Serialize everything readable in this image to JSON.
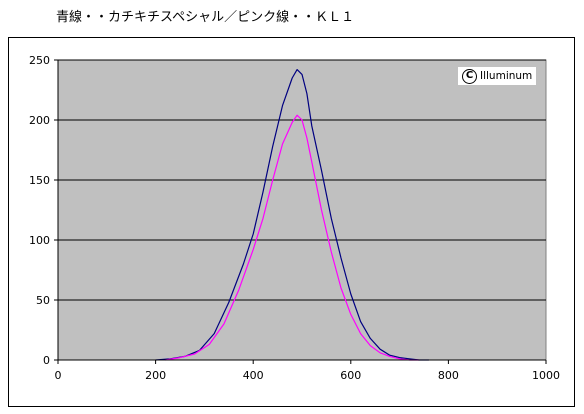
{
  "chart_data": {
    "type": "line",
    "title": "青線・・カチキチスペシャル／ピンク線・・ＫＬ１",
    "xlim": [
      0,
      1000
    ],
    "ylim": [
      0,
      250
    ],
    "x_ticks": [
      0,
      200,
      400,
      600,
      800,
      1000
    ],
    "y_ticks": [
      0,
      50,
      100,
      150,
      200,
      250
    ],
    "grid": "horizontal",
    "plot_background": "#c0c0c0",
    "watermark": "Illuminum",
    "series": [
      {
        "color": "#000080",
        "x": [
          200,
          230,
          260,
          290,
          320,
          350,
          380,
          400,
          420,
          440,
          460,
          480,
          490,
          500,
          510,
          520,
          540,
          560,
          580,
          600,
          620,
          640,
          660,
          680,
          700,
          720,
          740,
          760
        ],
        "y": [
          0,
          1,
          3,
          8,
          22,
          48,
          80,
          105,
          140,
          178,
          212,
          235,
          242,
          238,
          222,
          195,
          158,
          118,
          85,
          55,
          32,
          18,
          9,
          4,
          2,
          1,
          0,
          0
        ]
      },
      {
        "color": "#ff00ff",
        "x": [
          220,
          250,
          280,
          310,
          340,
          370,
          400,
          420,
          440,
          460,
          480,
          490,
          500,
          510,
          520,
          540,
          560,
          580,
          600,
          620,
          640,
          660,
          680,
          700,
          720,
          740
        ],
        "y": [
          0,
          2,
          5,
          13,
          30,
          58,
          92,
          118,
          150,
          180,
          198,
          204,
          200,
          185,
          165,
          125,
          90,
          60,
          38,
          22,
          12,
          6,
          3,
          1,
          0,
          0
        ]
      }
    ]
  }
}
